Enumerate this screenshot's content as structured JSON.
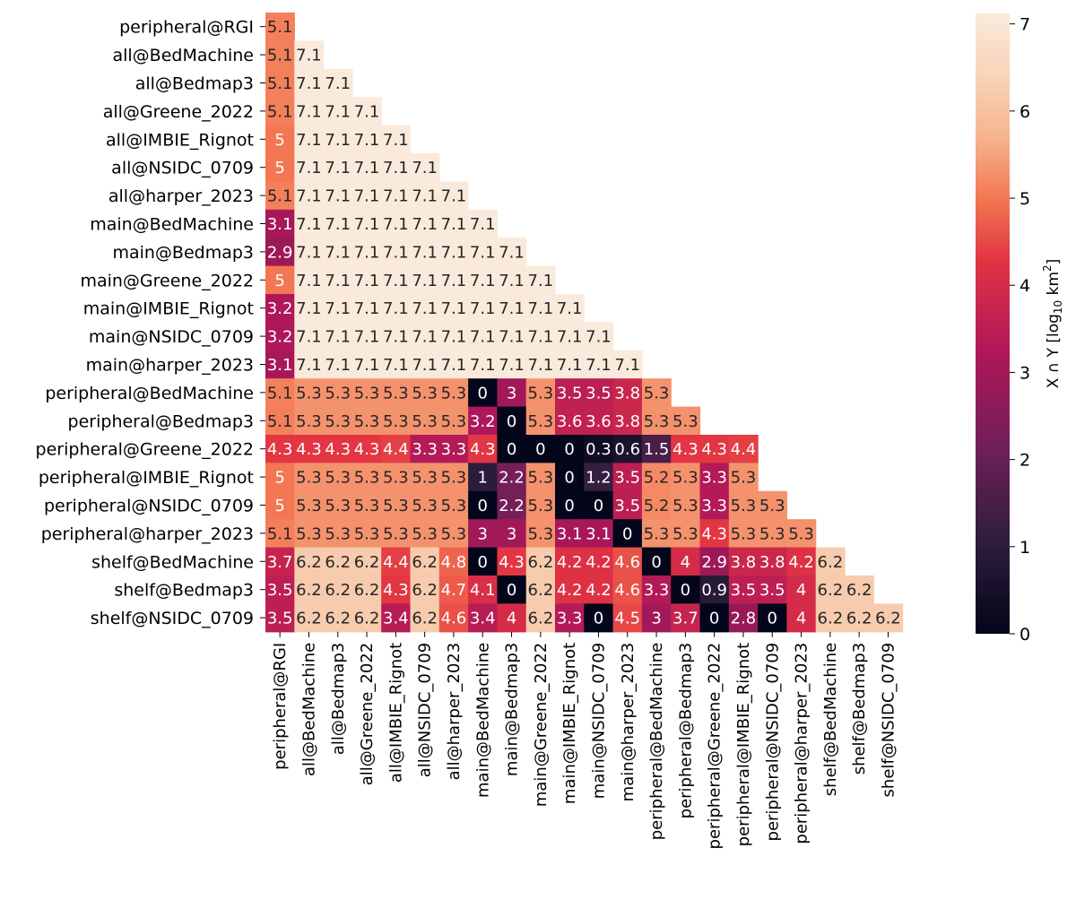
{
  "chart_data": {
    "type": "heatmap",
    "title": "",
    "xlabel": "",
    "ylabel": "",
    "colorbar_label": "X ∩ Y [log10 km²]",
    "colorbar_label_parts": {
      "pre": "X ∩ Y [log",
      "sub": "10",
      "mid": " km",
      "sup": "2",
      "post": "]"
    },
    "colorbar_ticks": [
      "0",
      "1",
      "2",
      "3",
      "4",
      "5",
      "6",
      "7"
    ],
    "vmin": 0,
    "vmax": 7.12,
    "colormap": "rocket",
    "grid": false,
    "mask": "upper triangle (columns after row index not shown)",
    "rows": [
      "peripheral@RGI",
      "all@BedMachine",
      "all@Bedmap3",
      "all@Greene_2022",
      "all@IMBIE_Rignot",
      "all@NSIDC_0709",
      "all@harper_2023",
      "main@BedMachine",
      "main@Bedmap3",
      "main@Greene_2022",
      "main@IMBIE_Rignot",
      "main@NSIDC_0709",
      "main@harper_2023",
      "peripheral@BedMachine",
      "peripheral@Bedmap3",
      "peripheral@Greene_2022",
      "peripheral@IMBIE_Rignot",
      "peripheral@NSIDC_0709",
      "peripheral@harper_2023",
      "shelf@BedMachine",
      "shelf@Bedmap3",
      "shelf@NSIDC_0709"
    ],
    "columns": [
      "peripheral@RGI",
      "all@BedMachine",
      "all@Bedmap3",
      "all@Greene_2022",
      "all@IMBIE_Rignot",
      "all@NSIDC_0709",
      "all@harper_2023",
      "main@BedMachine",
      "main@Bedmap3",
      "main@Greene_2022",
      "main@IMBIE_Rignot",
      "main@NSIDC_0709",
      "main@harper_2023",
      "peripheral@BedMachine",
      "peripheral@Bedmap3",
      "peripheral@Greene_2022",
      "peripheral@IMBIE_Rignot",
      "peripheral@NSIDC_0709",
      "peripheral@harper_2023",
      "shelf@BedMachine",
      "shelf@Bedmap3",
      "shelf@NSIDC_0709"
    ],
    "values": [
      [
        5.1
      ],
      [
        5.1,
        7.1
      ],
      [
        5.1,
        7.1,
        7.1
      ],
      [
        5.1,
        7.1,
        7.1,
        7.1
      ],
      [
        5,
        7.1,
        7.1,
        7.1,
        7.1
      ],
      [
        5,
        7.1,
        7.1,
        7.1,
        7.1,
        7.1
      ],
      [
        5.1,
        7.1,
        7.1,
        7.1,
        7.1,
        7.1,
        7.1
      ],
      [
        3.1,
        7.1,
        7.1,
        7.1,
        7.1,
        7.1,
        7.1,
        7.1
      ],
      [
        2.9,
        7.1,
        7.1,
        7.1,
        7.1,
        7.1,
        7.1,
        7.1,
        7.1
      ],
      [
        5,
        7.1,
        7.1,
        7.1,
        7.1,
        7.1,
        7.1,
        7.1,
        7.1,
        7.1
      ],
      [
        3.2,
        7.1,
        7.1,
        7.1,
        7.1,
        7.1,
        7.1,
        7.1,
        7.1,
        7.1,
        7.1
      ],
      [
        3.2,
        7.1,
        7.1,
        7.1,
        7.1,
        7.1,
        7.1,
        7.1,
        7.1,
        7.1,
        7.1,
        7.1
      ],
      [
        3.1,
        7.1,
        7.1,
        7.1,
        7.1,
        7.1,
        7.1,
        7.1,
        7.1,
        7.1,
        7.1,
        7.1,
        7.1
      ],
      [
        5.1,
        5.3,
        5.3,
        5.3,
        5.3,
        5.3,
        5.3,
        0,
        3,
        5.3,
        3.5,
        3.5,
        3.8,
        5.3
      ],
      [
        5.1,
        5.3,
        5.3,
        5.3,
        5.3,
        5.3,
        5.3,
        3.2,
        0,
        5.3,
        3.6,
        3.6,
        3.8,
        5.3,
        5.3
      ],
      [
        4.3,
        4.3,
        4.3,
        4.3,
        4.4,
        3.3,
        3.3,
        4.3,
        0,
        0,
        0,
        0.3,
        0.6,
        1.5,
        4.3,
        4.3,
        4.4
      ],
      [
        5,
        5.3,
        5.3,
        5.3,
        5.3,
        5.3,
        5.3,
        1,
        2.2,
        5.3,
        0,
        1.2,
        3.5,
        5.2,
        5.3,
        3.3,
        5.3
      ],
      [
        5,
        5.3,
        5.3,
        5.3,
        5.3,
        5.3,
        5.3,
        0,
        2.2,
        5.3,
        0,
        0,
        3.5,
        5.2,
        5.3,
        3.3,
        5.3,
        5.3
      ],
      [
        5.1,
        5.3,
        5.3,
        5.3,
        5.3,
        5.3,
        5.3,
        3,
        3,
        5.3,
        3.1,
        3.1,
        0,
        5.3,
        5.3,
        4.3,
        5.3,
        5.3,
        5.3
      ],
      [
        3.7,
        6.2,
        6.2,
        6.2,
        4.4,
        6.2,
        4.8,
        0,
        4.3,
        6.2,
        4.2,
        4.2,
        4.6,
        0,
        4,
        2.9,
        3.8,
        3.8,
        4.2,
        6.2
      ],
      [
        3.5,
        6.2,
        6.2,
        6.2,
        4.3,
        6.2,
        4.7,
        4.1,
        0,
        6.2,
        4.2,
        4.2,
        4.6,
        3.3,
        0,
        0.9,
        3.5,
        3.5,
        4,
        6.2,
        6.2
      ],
      [
        3.5,
        6.2,
        6.2,
        6.2,
        3.4,
        6.2,
        4.6,
        3.4,
        4,
        6.2,
        3.3,
        0,
        4.5,
        3,
        3.7,
        0,
        2.8,
        0,
        4,
        6.2,
        6.2,
        6.2
      ]
    ],
    "labels": [
      [
        "5.1"
      ],
      [
        "5.1",
        "7.1"
      ],
      [
        "5.1",
        "7.1",
        "7.1"
      ],
      [
        "5.1",
        "7.1",
        "7.1",
        "7.1"
      ],
      [
        "5",
        "7.1",
        "7.1",
        "7.1",
        "7.1"
      ],
      [
        "5",
        "7.1",
        "7.1",
        "7.1",
        "7.1",
        "7.1"
      ],
      [
        "5.1",
        "7.1",
        "7.1",
        "7.1",
        "7.1",
        "7.1",
        "7.1"
      ],
      [
        "3.1",
        "7.1",
        "7.1",
        "7.1",
        "7.1",
        "7.1",
        "7.1",
        "7.1"
      ],
      [
        "2.9",
        "7.1",
        "7.1",
        "7.1",
        "7.1",
        "7.1",
        "7.1",
        "7.1",
        "7.1"
      ],
      [
        "5",
        "7.1",
        "7.1",
        "7.1",
        "7.1",
        "7.1",
        "7.1",
        "7.1",
        "7.1",
        "7.1"
      ],
      [
        "3.2",
        "7.1",
        "7.1",
        "7.1",
        "7.1",
        "7.1",
        "7.1",
        "7.1",
        "7.1",
        "7.1",
        "7.1"
      ],
      [
        "3.2",
        "7.1",
        "7.1",
        "7.1",
        "7.1",
        "7.1",
        "7.1",
        "7.1",
        "7.1",
        "7.1",
        "7.1",
        "7.1"
      ],
      [
        "3.1",
        "7.1",
        "7.1",
        "7.1",
        "7.1",
        "7.1",
        "7.1",
        "7.1",
        "7.1",
        "7.1",
        "7.1",
        "7.1",
        "7.1"
      ],
      [
        "5.1",
        "5.3",
        "5.3",
        "5.3",
        "5.3",
        "5.3",
        "5.3",
        "0",
        "3",
        "5.3",
        "3.5",
        "3.5",
        "3.8",
        "5.3"
      ],
      [
        "5.1",
        "5.3",
        "5.3",
        "5.3",
        "5.3",
        "5.3",
        "5.3",
        "3.2",
        "0",
        "5.3",
        "3.6",
        "3.6",
        "3.8",
        "5.3",
        "5.3"
      ],
      [
        "4.3",
        "4.3",
        "4.3",
        "4.3",
        "4.4",
        "3.3",
        "3.3",
        "4.3",
        "0",
        "0",
        "0",
        "0.3",
        "0.6",
        "1.5",
        "4.3",
        "4.3",
        "4.4"
      ],
      [
        "5",
        "5.3",
        "5.3",
        "5.3",
        "5.3",
        "5.3",
        "5.3",
        "1",
        "2.2",
        "5.3",
        "0",
        "1.2",
        "3.5",
        "5.2",
        "5.3",
        "3.3",
        "5.3"
      ],
      [
        "5",
        "5.3",
        "5.3",
        "5.3",
        "5.3",
        "5.3",
        "5.3",
        "0",
        "2.2",
        "5.3",
        "0",
        "0",
        "3.5",
        "5.2",
        "5.3",
        "3.3",
        "5.3",
        "5.3"
      ],
      [
        "5.1",
        "5.3",
        "5.3",
        "5.3",
        "5.3",
        "5.3",
        "5.3",
        "3",
        "3",
        "5.3",
        "3.1",
        "3.1",
        "0",
        "5.3",
        "5.3",
        "4.3",
        "5.3",
        "5.3",
        "5.3"
      ],
      [
        "3.7",
        "6.2",
        "6.2",
        "6.2",
        "4.4",
        "6.2",
        "4.8",
        "0",
        "4.3",
        "6.2",
        "4.2",
        "4.2",
        "4.6",
        "0",
        "4",
        "2.9",
        "3.8",
        "3.8",
        "4.2",
        "6.2"
      ],
      [
        "3.5",
        "6.2",
        "6.2",
        "6.2",
        "4.3",
        "6.2",
        "4.7",
        "4.1",
        "0",
        "6.2",
        "4.2",
        "4.2",
        "4.6",
        "3.3",
        "0",
        "0.9",
        "3.5",
        "3.5",
        "4",
        "6.2",
        "6.2"
      ],
      [
        "3.5",
        "6.2",
        "6.2",
        "6.2",
        "3.4",
        "6.2",
        "4.6",
        "3.4",
        "4",
        "6.2",
        "3.3",
        "0",
        "4.5",
        "3",
        "3.7",
        "0",
        "2.8",
        "0",
        "4",
        "6.2",
        "6.2",
        "6.2"
      ]
    ]
  }
}
